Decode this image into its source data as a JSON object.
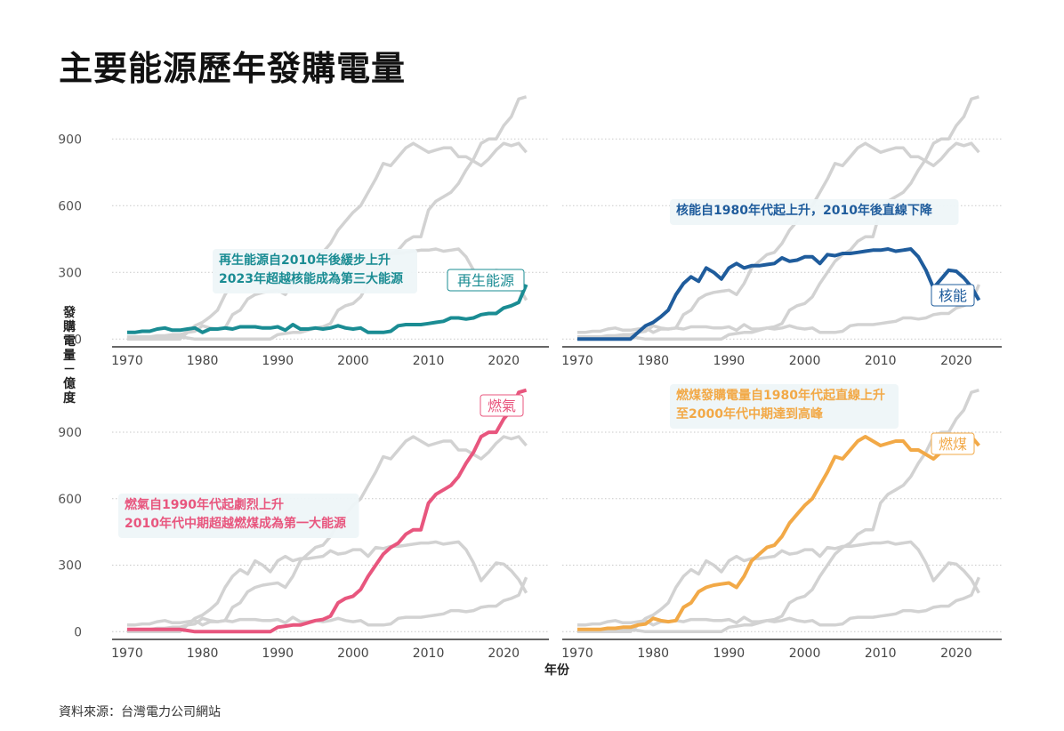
{
  "title": "主要能源歷年發購電量",
  "source": "資料來源：台灣電力公司網站",
  "chart_data": {
    "type": "line",
    "xlabel": "年份",
    "ylabel": "發購電量－億度",
    "xlim": [
      1968,
      2026
    ],
    "ylim": [
      -35,
      1125
    ],
    "xticks": [
      1970,
      1980,
      1990,
      2000,
      2010,
      2020
    ],
    "yticks": [
      0,
      300,
      600,
      900
    ],
    "grid": "horizontal dotted",
    "colors": {
      "renewable": "#1a8c93",
      "nuclear": "#1f5c9c",
      "gas": "#e8567e",
      "coal": "#f2a947",
      "background_series": "#d2d2d2",
      "annotation_bg": "#eef5f8"
    },
    "x": [
      1970,
      1971,
      1972,
      1973,
      1974,
      1975,
      1976,
      1977,
      1978,
      1979,
      1980,
      1981,
      1982,
      1983,
      1984,
      1985,
      1986,
      1987,
      1988,
      1989,
      1990,
      1991,
      1992,
      1993,
      1994,
      1995,
      1996,
      1997,
      1998,
      1999,
      2000,
      2001,
      2002,
      2003,
      2004,
      2005,
      2006,
      2007,
      2008,
      2009,
      2010,
      2011,
      2012,
      2013,
      2014,
      2015,
      2016,
      2017,
      2018,
      2019,
      2020,
      2021,
      2022,
      2023
    ],
    "series": [
      {
        "key": "renewable",
        "name": "再生能源",
        "values": [
          30,
          30,
          35,
          35,
          45,
          50,
          40,
          40,
          45,
          50,
          30,
          45,
          45,
          50,
          45,
          55,
          55,
          55,
          50,
          50,
          55,
          40,
          65,
          45,
          45,
          50,
          45,
          50,
          60,
          50,
          45,
          50,
          30,
          30,
          30,
          35,
          60,
          65,
          65,
          65,
          70,
          75,
          80,
          95,
          95,
          90,
          95,
          110,
          115,
          115,
          140,
          150,
          165,
          245
        ]
      },
      {
        "key": "nuclear",
        "name": "核能",
        "values": [
          0,
          0,
          0,
          0,
          0,
          0,
          0,
          0,
          30,
          60,
          75,
          100,
          130,
          200,
          250,
          280,
          260,
          320,
          300,
          270,
          320,
          340,
          320,
          330,
          330,
          335,
          340,
          365,
          350,
          355,
          370,
          370,
          340,
          380,
          375,
          385,
          385,
          390,
          395,
          400,
          400,
          405,
          395,
          400,
          405,
          370,
          310,
          230,
          270,
          310,
          305,
          275,
          235,
          175
        ]
      },
      {
        "key": "gas",
        "name": "燃氣",
        "values": [
          10,
          10,
          10,
          10,
          10,
          10,
          10,
          10,
          5,
          0,
          0,
          0,
          0,
          0,
          0,
          0,
          0,
          0,
          0,
          0,
          20,
          25,
          30,
          30,
          40,
          50,
          55,
          70,
          130,
          150,
          160,
          190,
          250,
          300,
          350,
          380,
          400,
          440,
          460,
          460,
          580,
          620,
          640,
          660,
          700,
          760,
          810,
          880,
          900,
          900,
          960,
          1000,
          1080,
          1090
        ]
      },
      {
        "key": "coal",
        "name": "燃煤",
        "values": [
          10,
          10,
          10,
          10,
          15,
          15,
          20,
          20,
          30,
          35,
          60,
          50,
          45,
          50,
          110,
          130,
          180,
          200,
          210,
          215,
          220,
          200,
          250,
          320,
          350,
          380,
          390,
          430,
          490,
          530,
          570,
          600,
          660,
          720,
          790,
          780,
          820,
          860,
          880,
          860,
          840,
          850,
          860,
          860,
          820,
          820,
          800,
          780,
          810,
          850,
          880,
          870,
          880,
          840
        ]
      }
    ],
    "panels": [
      {
        "highlight": "renewable",
        "label": "再生能源",
        "annotation": [
          "再生能源自2010年後緩步上升",
          "2023年超越核能成為第三大能源"
        ]
      },
      {
        "highlight": "nuclear",
        "label": "核能",
        "annotation": [
          "核能自1980年代起上升，2010年後直線下降"
        ]
      },
      {
        "highlight": "gas",
        "label": "燃氣",
        "annotation": [
          "燃氣自1990年代起劇烈上升",
          "2010年代中期超越燃煤成為第一大能源"
        ]
      },
      {
        "highlight": "coal",
        "label": "燃煤",
        "annotation": [
          "燃煤發購電量自1980年代起直線上升",
          "至2000年代中期達到高峰"
        ]
      }
    ]
  }
}
